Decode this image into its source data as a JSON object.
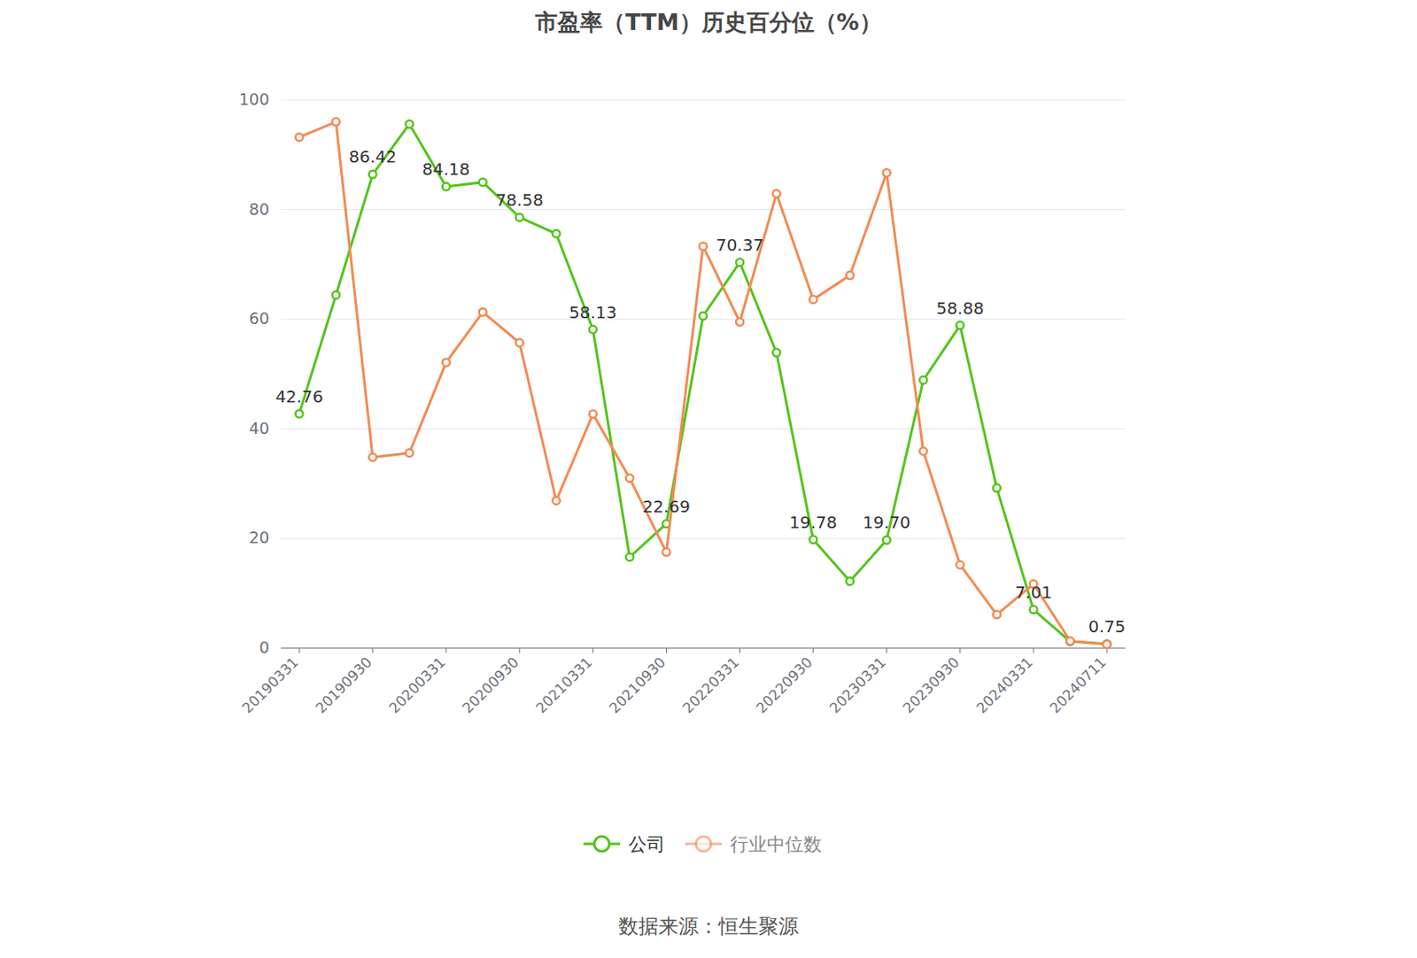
{
  "chart_data": {
    "type": "line",
    "title": "市盈率（TTM）历史百分位（%）",
    "source": "数据来源：恒生聚源",
    "categories": [
      "20190331",
      null,
      "20190930",
      null,
      "20200331",
      null,
      "20200930",
      null,
      "20210331",
      null,
      "20210930",
      null,
      "20220331",
      null,
      "20220930",
      null,
      "20230331",
      null,
      "20230930",
      null,
      "20240331",
      null,
      "20240711"
    ],
    "series": [
      {
        "name": "公司",
        "color": "#52c41a",
        "marker": "circle",
        "data_labels": true,
        "values": [
          42.76,
          64.4,
          86.42,
          95.6,
          84.18,
          85.0,
          78.58,
          75.6,
          58.13,
          16.6,
          22.69,
          60.6,
          70.37,
          53.9,
          19.78,
          12.2,
          19.7,
          48.9,
          58.88,
          29.2,
          7.01,
          1.2,
          0.75
        ],
        "value_labels": [
          "42.76",
          null,
          "86.42",
          null,
          "84.18",
          null,
          "78.58",
          null,
          "58.13",
          null,
          "22.69",
          null,
          "70.37",
          null,
          "19.78",
          null,
          "19.70",
          null,
          "58.88",
          null,
          "7.01",
          null,
          "0.75"
        ]
      },
      {
        "name": "行业中位数",
        "color": "#f38a52",
        "marker": "circle",
        "values": [
          93.2,
          96.0,
          34.8,
          35.6,
          52.1,
          61.3,
          55.7,
          26.9,
          42.7,
          31.0,
          17.5,
          73.3,
          59.5,
          82.9,
          63.6,
          68.0,
          86.7,
          35.9,
          15.2,
          6.1,
          11.7,
          1.3,
          0.7
        ]
      }
    ],
    "ylim": [
      0,
      100
    ],
    "yticks": [
      0,
      20,
      40,
      60,
      80,
      100
    ],
    "grid": true,
    "legend": "bottom"
  }
}
